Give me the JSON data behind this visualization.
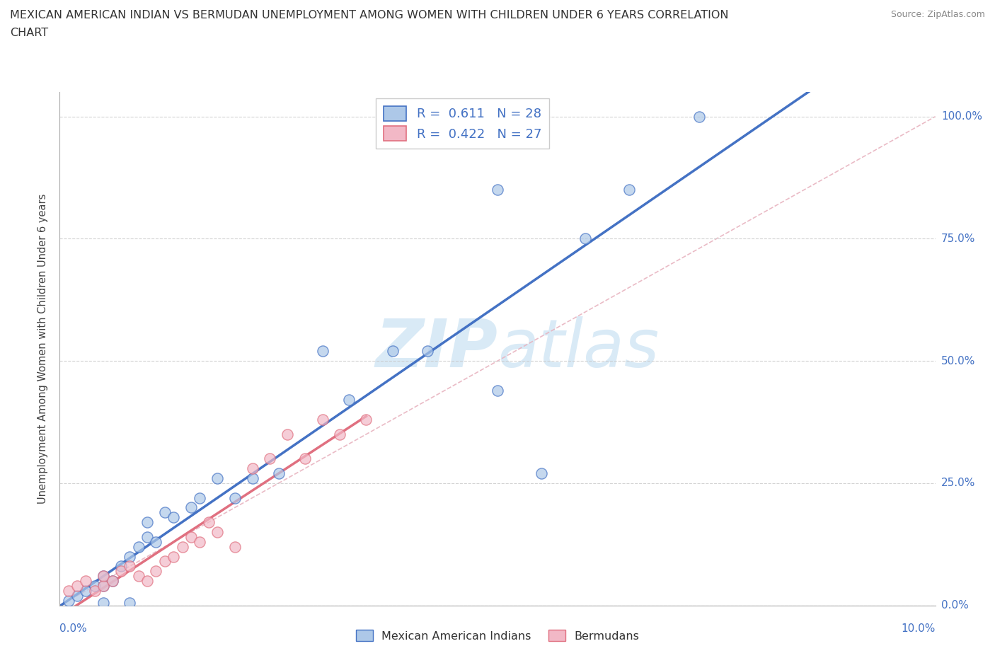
{
  "title_line1": "MEXICAN AMERICAN INDIAN VS BERMUDAN UNEMPLOYMENT AMONG WOMEN WITH CHILDREN UNDER 6 YEARS CORRELATION",
  "title_line2": "CHART",
  "source": "Source: ZipAtlas.com",
  "ylabel": "Unemployment Among Women with Children Under 6 years",
  "blue_R": 0.611,
  "blue_N": 28,
  "pink_R": 0.422,
  "pink_N": 27,
  "blue_color": "#adc8e8",
  "pink_color": "#f2b8c6",
  "blue_line_color": "#4472c4",
  "pink_line_color": "#e07080",
  "diag_color": "#e8b4c0",
  "grid_color": "#c8c8c8",
  "bg_color": "#ffffff",
  "watermark_color": "#d5e8f5",
  "legend_label_blue": "Mexican American Indians",
  "legend_label_pink": "Bermudans",
  "blue_scatter_x": [
    0.001,
    0.002,
    0.003,
    0.004,
    0.005,
    0.005,
    0.006,
    0.007,
    0.008,
    0.009,
    0.01,
    0.01,
    0.011,
    0.012,
    0.013,
    0.015,
    0.016,
    0.018,
    0.02,
    0.022,
    0.025,
    0.03,
    0.033,
    0.038,
    0.042,
    0.05,
    0.055,
    0.06
  ],
  "blue_scatter_y": [
    0.01,
    0.02,
    0.03,
    0.04,
    0.04,
    0.06,
    0.05,
    0.08,
    0.1,
    0.12,
    0.14,
    0.17,
    0.13,
    0.19,
    0.18,
    0.2,
    0.22,
    0.26,
    0.22,
    0.26,
    0.27,
    0.52,
    0.42,
    0.52,
    0.52,
    0.44,
    0.27,
    0.75
  ],
  "pink_scatter_x": [
    0.001,
    0.002,
    0.003,
    0.004,
    0.005,
    0.005,
    0.006,
    0.007,
    0.008,
    0.009,
    0.01,
    0.011,
    0.012,
    0.013,
    0.014,
    0.015,
    0.016,
    0.017,
    0.018,
    0.02,
    0.022,
    0.024,
    0.026,
    0.028,
    0.03,
    0.032,
    0.035
  ],
  "pink_scatter_y": [
    0.03,
    0.04,
    0.05,
    0.03,
    0.04,
    0.06,
    0.05,
    0.07,
    0.08,
    0.06,
    0.05,
    0.07,
    0.09,
    0.1,
    0.12,
    0.14,
    0.13,
    0.17,
    0.15,
    0.12,
    0.28,
    0.3,
    0.35,
    0.3,
    0.38,
    0.35,
    0.38
  ],
  "blue_outlier_x": [
    0.073
  ],
  "blue_outlier_y": [
    1.0
  ],
  "blue_outlier2_x": [
    0.05
  ],
  "blue_outlier2_y": [
    0.85
  ],
  "xlim": [
    0,
    0.1
  ],
  "ylim": [
    0,
    1.05
  ],
  "x_tick_positions": [
    0.0,
    0.02,
    0.04,
    0.06,
    0.08,
    0.1
  ],
  "y_tick_positions": [
    0.0,
    0.25,
    0.5,
    0.75,
    1.0
  ],
  "y_tick_labels": [
    "0.0%",
    "25.0%",
    "50.0%",
    "75.0%",
    "100.0%"
  ]
}
